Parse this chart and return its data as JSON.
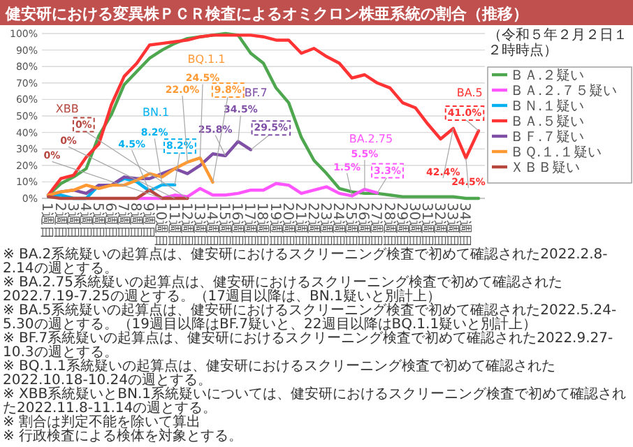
{
  "chart_data": {
    "type": "line",
    "title": "健安研における変異株ＰＣＲ検査によるオミクロン株亜系統の割合（推移）",
    "subtitle": "（令和５年２月２日１２時時点）",
    "categories": [
      "1週目",
      "2週目",
      "3週目",
      "4週目",
      "5週目",
      "6週目",
      "7週目",
      "8週目",
      "9週目",
      "10週目",
      "11週目",
      "12週目",
      "13週目",
      "14週目",
      "15週目",
      "16週目",
      "17週目",
      "18週目",
      "19週目",
      "20週目",
      "21週目",
      "22週目",
      "23週目",
      "24週目",
      "25週目",
      "26週目",
      "27週目",
      "28週目",
      "29週目",
      "30週目",
      "31週目",
      "32週目",
      "33週目",
      "34週目",
      null
    ],
    "ylim": [
      0,
      100
    ],
    "yticks": [
      {
        "value": 0,
        "label": "0%"
      },
      {
        "value": 10,
        "label": "10%"
      },
      {
        "value": 20,
        "label": "20%"
      },
      {
        "value": 30,
        "label": "30%"
      },
      {
        "value": 40,
        "label": "40%"
      },
      {
        "value": 50,
        "label": "50%"
      },
      {
        "value": 60,
        "label": "60%"
      },
      {
        "value": 70,
        "label": "70%"
      },
      {
        "value": 80,
        "label": "80%"
      },
      {
        "value": 90,
        "label": "90%"
      },
      {
        "value": 100,
        "label": "100%"
      }
    ],
    "grid": "y",
    "legend": "right",
    "marker": "none",
    "line_style": "solid",
    "series": [
      {
        "name": "ＢＡ.２疑い",
        "color": "#4ea64e",
        "values": [
          2,
          9,
          13,
          18,
          38,
          51,
          69,
          77,
          85,
          90,
          94,
          97,
          98,
          99,
          100,
          99,
          88,
          82,
          67,
          58,
          37,
          23,
          15,
          6,
          4,
          3,
          3,
          2,
          1,
          1,
          1,
          1,
          1,
          0,
          0
        ]
      },
      {
        "name": "ＢＡ.２.７５疑い",
        "color": "#ff55ff",
        "values": [
          null,
          null,
          null,
          null,
          null,
          null,
          null,
          0,
          0,
          0,
          2,
          1,
          6,
          2,
          2,
          3,
          5,
          5,
          9,
          8,
          3,
          5,
          7,
          3,
          1.5,
          5.5,
          3.3,
          null,
          null,
          null,
          null,
          null,
          null,
          null,
          null
        ],
        "value_labels": [
          null,
          null,
          null,
          null,
          null,
          null,
          null,
          null,
          null,
          null,
          null,
          null,
          null,
          null,
          null,
          null,
          null,
          null,
          null,
          null,
          null,
          null,
          null,
          null,
          "1.5%",
          "5.5%",
          "3.3%",
          null,
          null,
          null,
          null,
          null,
          null,
          null,
          null
        ]
      },
      {
        "name": "ＢＮ.１疑い",
        "color": "#00b0f0",
        "values": [
          1,
          2,
          0,
          0,
          8,
          8,
          12,
          10,
          4.5,
          8.2,
          8.2,
          null,
          null,
          null,
          null,
          null,
          null,
          null,
          null,
          null,
          null,
          null,
          null,
          null,
          null,
          null,
          null,
          null,
          null,
          null,
          null,
          null,
          null,
          null,
          null
        ],
        "value_labels": [
          null,
          null,
          null,
          null,
          null,
          null,
          null,
          null,
          "4.5%",
          "8.2%",
          "8.2%",
          null,
          null,
          null,
          null,
          null,
          null,
          null,
          null,
          null,
          null,
          null,
          null,
          null,
          null,
          null,
          null,
          null,
          null,
          null,
          null,
          null,
          null,
          null,
          null
        ]
      },
      {
        "name": "ＢＡ.５疑い",
        "color": "#ff3333",
        "values": [
          2,
          12,
          14,
          25,
          33,
          57,
          74,
          82,
          93,
          94,
          95,
          96,
          98,
          99,
          99,
          99,
          99,
          98,
          96,
          96,
          88,
          91,
          86,
          82,
          73,
          75,
          70,
          67,
          58,
          55,
          45,
          36,
          42.4,
          24.5,
          41.0
        ],
        "value_labels": [
          null,
          null,
          null,
          null,
          null,
          null,
          null,
          null,
          null,
          null,
          null,
          null,
          null,
          null,
          null,
          null,
          null,
          null,
          null,
          null,
          null,
          null,
          null,
          null,
          null,
          null,
          null,
          null,
          null,
          null,
          null,
          null,
          "42.4%",
          "24.5%",
          "41.0%"
        ]
      },
      {
        "name": "ＢＦ.７疑い",
        "color": "#7f4fa6",
        "values": [
          2,
          4,
          5,
          3,
          8,
          8,
          13,
          12,
          12,
          15,
          18,
          15,
          20,
          27,
          25.8,
          34.5,
          29.5,
          null,
          null,
          null,
          null,
          null,
          null,
          null,
          null,
          null,
          null,
          null,
          null,
          null,
          null,
          null,
          null,
          null,
          null
        ],
        "value_labels": [
          null,
          null,
          null,
          null,
          null,
          null,
          null,
          null,
          null,
          null,
          null,
          null,
          null,
          null,
          "25.8%",
          "34.5%",
          "29.5%",
          null,
          null,
          null,
          null,
          null,
          null,
          null,
          null,
          null,
          null,
          null,
          null,
          null,
          null,
          null,
          null,
          null,
          null
        ]
      },
      {
        "name": "ＢＱ.１.１疑い",
        "color": "#ff9933",
        "values": [
          2,
          4,
          5,
          8,
          6,
          8,
          8,
          11,
          15,
          13,
          18,
          22.0,
          24.5,
          9.8,
          null,
          null,
          null,
          null,
          null,
          null,
          null,
          null,
          null,
          null,
          null,
          null,
          null,
          null,
          null,
          null,
          null,
          null,
          null,
          null,
          null
        ],
        "value_labels": [
          null,
          null,
          null,
          null,
          null,
          null,
          null,
          null,
          null,
          null,
          null,
          "22.0%",
          "24.5%",
          "9.8%",
          null,
          null,
          null,
          null,
          null,
          null,
          null,
          null,
          null,
          null,
          null,
          null,
          null,
          null,
          null,
          null,
          null,
          null,
          null,
          null,
          null
        ]
      },
      {
        "name": "ＸＢＢ疑い",
        "color": "#b5473f",
        "values": [
          1,
          0,
          0,
          0,
          0,
          0,
          0,
          0,
          5,
          0,
          0,
          0,
          null,
          null,
          null,
          null,
          null,
          null,
          null,
          null,
          null,
          null,
          null,
          null,
          null,
          null,
          null,
          null,
          null,
          null,
          null,
          null,
          null,
          null,
          null
        ],
        "value_labels": [
          null,
          null,
          null,
          null,
          null,
          null,
          null,
          null,
          null,
          "0%",
          "0%",
          "0%",
          null,
          null,
          null,
          null,
          null,
          null,
          null,
          null,
          null,
          null,
          null,
          null,
          null,
          null,
          null,
          null,
          null,
          null,
          null,
          null,
          null,
          null,
          null
        ]
      }
    ],
    "annotations": [
      "XBB",
      "BN.1",
      "BQ.1.1",
      "BF.7",
      "BA.2.75",
      "BA.5",
      "※ BA.2系統疑いの起算点は、健安研におけるスクリーニング検査で初めて確認された2022.2.8-2.14の週とする。",
      "※ BA.2.75系統疑いの起算点は、健安研におけるスクリーニング検査で初めて確認された2022.7.19-7.25の週とする。（17週目以降は、BN.1疑いと別計上）",
      "※ BA.5系統疑いの起算点は、健安研におけるスクリーニング検査で初めて確認された2022.5.24-5.30の週とする。（19週目以降はBF.7疑いと、22週目以降はBQ.1.1疑いと別計上）",
      "※ BF.7系統疑いの起算点は、健安研におけるスクリーニング検査で初めて確認された2022.9.27-10.3の週とする。",
      "※ BQ.1.1系統疑いの起算点は、健安研におけるスクリーニング検査で初めて確認された2022.10.18-10.24の週とする。",
      "※ XBB系統疑いとBN.1系統疑いについては、健安研におけるスクリーニング検査で初めて確認された2022.11.8-11.14の週とする。",
      "※ 割合は判定不能を除いて算出",
      "※ 行政検査による検体を対象とする。"
    ]
  }
}
